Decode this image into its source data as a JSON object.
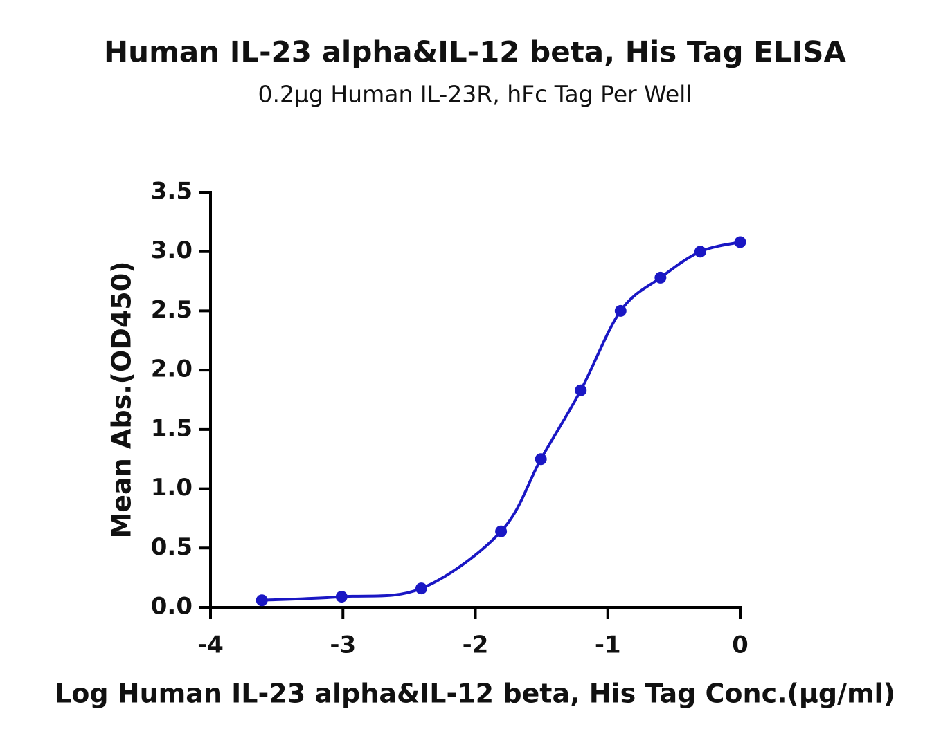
{
  "chart_data": {
    "type": "line",
    "title": "Human IL-23 alpha&IL-12 beta, His Tag ELISA",
    "subtitle": "0.2µg Human IL-23R, hFc Tag Per Well",
    "x_label": "Log Human IL-23 alpha&IL-12 beta, His Tag Conc.(µg/ml)",
    "y_label": "Mean Abs.(OD450)",
    "x": [
      -3.612,
      -3.01,
      -2.408,
      -1.806,
      -1.505,
      -1.204,
      -0.903,
      -0.602,
      -0.301,
      0
    ],
    "series": [
      {
        "color": "#1a17c4",
        "values": [
          0.06,
          0.09,
          0.16,
          0.64,
          1.25,
          1.83,
          2.5,
          2.78,
          3.0,
          3.08
        ]
      }
    ],
    "markers": true,
    "smooth": true,
    "xlim": [
      -4,
      0
    ],
    "xticks": [
      -4,
      -3,
      -2,
      -1,
      0
    ],
    "ylim": [
      0,
      3.5
    ],
    "yticks": [
      {
        "value": 0,
        "label": "0.0"
      },
      0.5,
      {
        "value": 1,
        "label": "1.0"
      },
      1.5,
      {
        "value": 2,
        "label": "2.0"
      },
      2.5,
      {
        "value": 3,
        "label": "3.0"
      },
      3.5
    ]
  }
}
